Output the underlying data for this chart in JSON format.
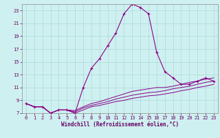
{
  "xlabel": "Windchill (Refroidissement éolien,°C)",
  "background_color": "#cff0f0",
  "grid_color": "#aad8d8",
  "line_color": "#880088",
  "x_hours": [
    0,
    1,
    2,
    3,
    4,
    5,
    6,
    7,
    8,
    9,
    10,
    11,
    12,
    13,
    14,
    15,
    16,
    17,
    18,
    19,
    20,
    21,
    22,
    23
  ],
  "temp_main": [
    8.5,
    8.0,
    8.0,
    7.0,
    7.5,
    7.5,
    7.0,
    11.0,
    14.0,
    15.5,
    17.5,
    19.5,
    22.5,
    24.0,
    23.5,
    22.5,
    16.5,
    13.5,
    12.5,
    11.5,
    11.5,
    12.0,
    12.5,
    12.0
  ],
  "temp_low1": [
    8.5,
    8.0,
    8.0,
    7.0,
    7.5,
    7.5,
    7.0,
    7.5,
    8.0,
    8.2,
    8.5,
    8.8,
    9.0,
    9.3,
    9.5,
    9.7,
    9.8,
    10.0,
    10.2,
    10.5,
    10.7,
    11.0,
    11.2,
    11.5
  ],
  "temp_low2": [
    8.5,
    8.0,
    8.0,
    7.0,
    7.5,
    7.5,
    7.2,
    7.8,
    8.2,
    8.5,
    8.8,
    9.2,
    9.5,
    9.8,
    10.0,
    10.2,
    10.3,
    10.5,
    10.8,
    11.0,
    11.2,
    11.5,
    11.8,
    12.0
  ],
  "temp_low3": [
    8.5,
    8.0,
    8.0,
    7.0,
    7.5,
    7.5,
    7.4,
    8.0,
    8.5,
    8.8,
    9.2,
    9.6,
    10.0,
    10.4,
    10.6,
    10.8,
    11.0,
    11.0,
    11.2,
    11.5,
    11.8,
    12.0,
    12.3,
    12.5
  ],
  "ylim": [
    7,
    24
  ],
  "xlim": [
    -0.5,
    23.5
  ],
  "yticks": [
    7,
    9,
    11,
    13,
    15,
    17,
    19,
    21,
    23
  ],
  "xtick_labels": [
    "0",
    "1",
    "2",
    "3",
    "4",
    "5",
    "6",
    "7",
    "8",
    "9",
    "10",
    "11",
    "12",
    "13",
    "14",
    "15",
    "16",
    "17",
    "18",
    "19",
    "20",
    "21",
    "22",
    "23"
  ],
  "xlabel_fontsize": 5.5,
  "tick_fontsize": 5.0,
  "xlabel_color": "#660066",
  "tick_color": "#660066"
}
